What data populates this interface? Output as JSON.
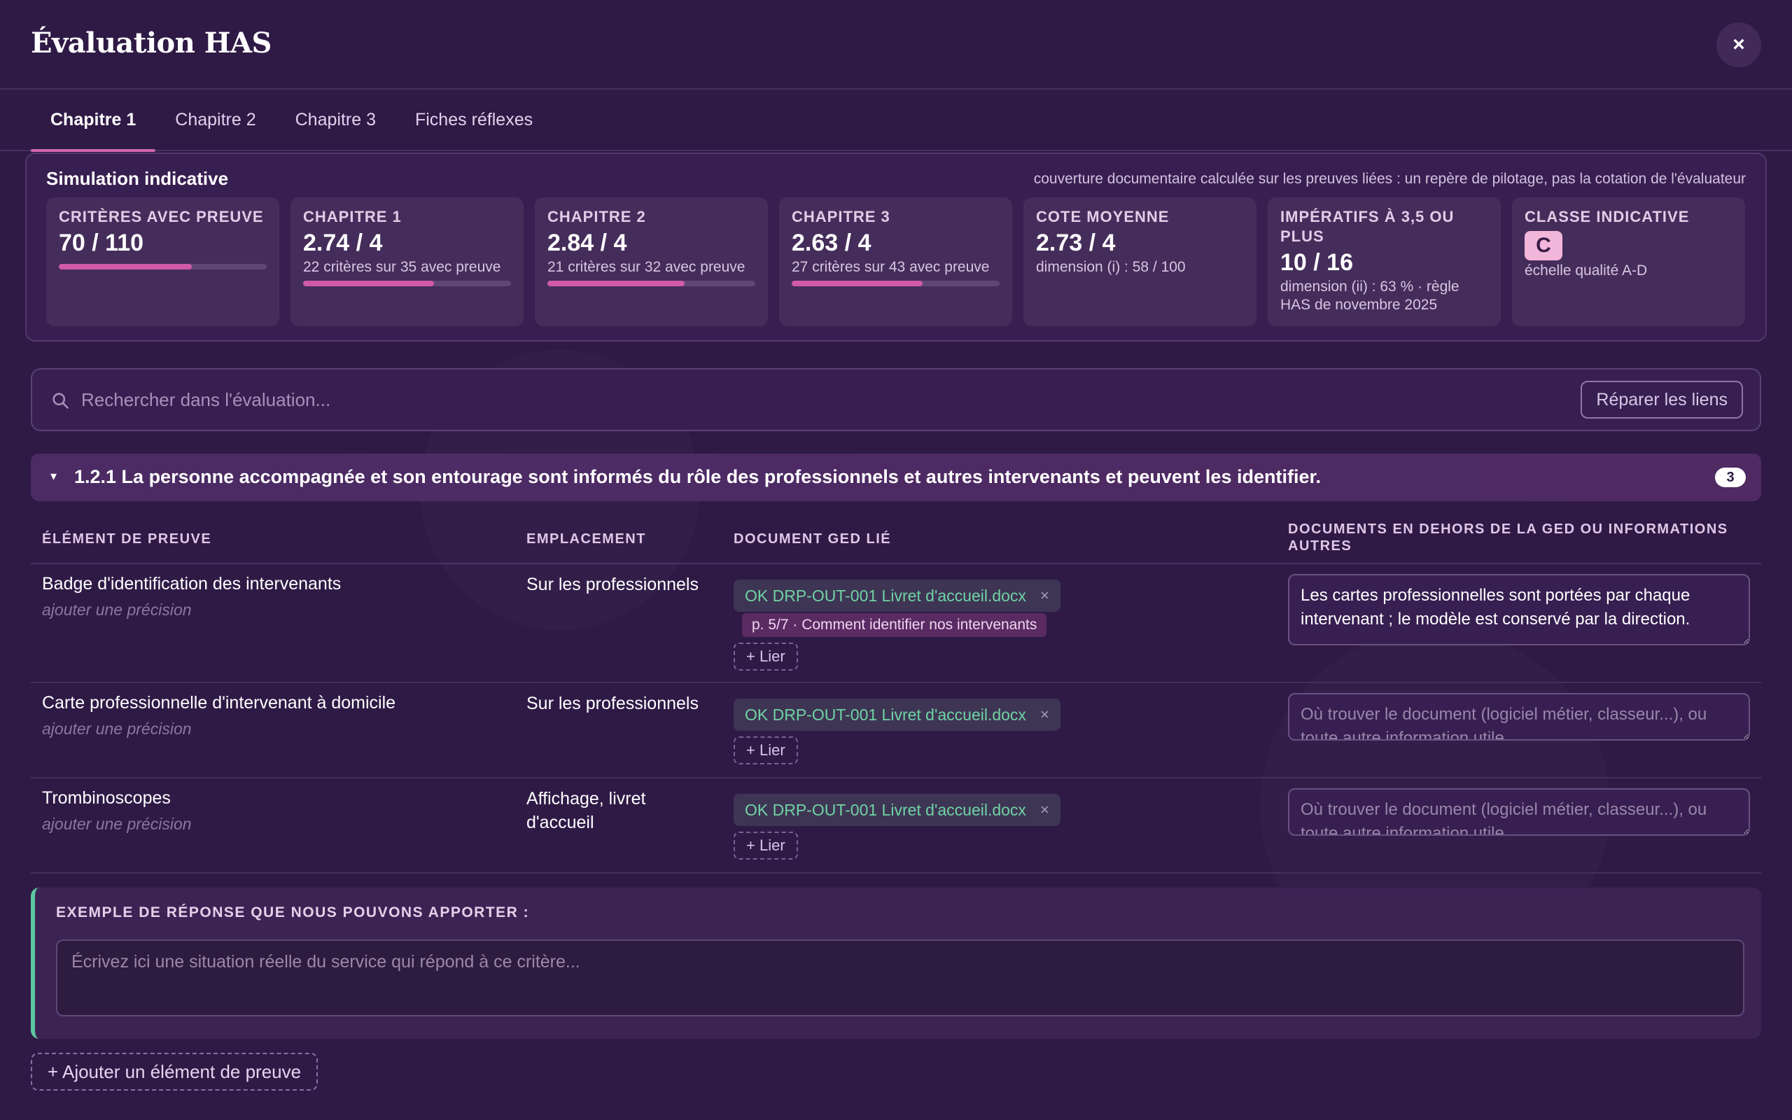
{
  "header": {
    "title": "Évaluation HAS",
    "close_glyph": "×"
  },
  "tabs": [
    {
      "label": "Chapitre 1",
      "active": true
    },
    {
      "label": "Chapitre 2",
      "active": false
    },
    {
      "label": "Chapitre 3",
      "active": false
    },
    {
      "label": "Fiches réflexes",
      "active": false
    }
  ],
  "simulation": {
    "title": "Simulation indicative",
    "note": "couverture documentaire calculée sur les preuves liées : un repère de pilotage, pas la cotation de l'évaluateur",
    "cards": [
      {
        "label": "Critères avec preuve",
        "value": "70 / 110",
        "sub": "",
        "progress": 0.64
      },
      {
        "label": "Chapitre 1",
        "value": "2.74 / 4",
        "sub": "22 critères sur 35 avec preuve",
        "progress": 0.63
      },
      {
        "label": "Chapitre 2",
        "value": "2.84 / 4",
        "sub": "21 critères sur 32 avec preuve",
        "progress": 0.66
      },
      {
        "label": "Chapitre 3",
        "value": "2.63 / 4",
        "sub": "27 critères sur 43 avec preuve",
        "progress": 0.63
      },
      {
        "label": "Cote moyenne",
        "value": "2.73 / 4",
        "sub": "dimension (i) : 58 / 100"
      },
      {
        "label": "Impératifs à 3,5 ou plus",
        "value": "10 / 16",
        "sub": "dimension (ii) : 63 % · règle HAS de novembre 2025"
      },
      {
        "label": "Classe indicative",
        "value": "C",
        "sub": "échelle qualité A-D"
      }
    ]
  },
  "search": {
    "placeholder": "Rechercher dans l'évaluation...",
    "value": "",
    "repair_label": "Réparer les liens"
  },
  "criterion": {
    "caret": "▾",
    "title": "1.2.1 La personne accompagnée et son entourage sont informés du rôle des professionnels et autres intervenants et peuvent les identifier.",
    "count": "3"
  },
  "table": {
    "headers": {
      "element": "Élément de preuve",
      "location": "Emplacement",
      "doc": "Document GED lié",
      "other": "Documents en dehors de la GED ou informations autres"
    },
    "hint": "ajouter une précision",
    "link_label": "+ Lier",
    "other_placeholder": "Où trouver le document (logiciel métier, classeur...), ou toute autre information utile",
    "rows": [
      {
        "name": "Badge d'identification des intervenants",
        "location": "Sur les professionnels",
        "doc": "OK DRP-OUT-001 Livret d'accueil.docx",
        "page": "p. 5/7 · Comment identifier nos intervenants",
        "other": "Les cartes professionnelles sont portées par chaque intervenant ; le modèle est conservé par la direction."
      },
      {
        "name": "Carte professionnelle d'intervenant à domicile",
        "location": "Sur les professionnels",
        "doc": "OK DRP-OUT-001 Livret d'accueil.docx",
        "page": "",
        "other": ""
      },
      {
        "name": "Trombinoscopes",
        "location": "Affichage, livret d'accueil",
        "doc": "OK DRP-OUT-001 Livret d'accueil.docx",
        "page": "",
        "other": ""
      }
    ]
  },
  "example": {
    "label": "Exemple de réponse que nous pouvons apporter :",
    "placeholder": "Écrivez ici une situation réelle du service qui répond à ce critère..."
  },
  "add_evidence_label": "+ Ajouter un élément de preuve",
  "colors": {
    "background": "#2f1a46",
    "accent": "#d267b0",
    "ok_text": "#6fd3a2",
    "example_border": "#5fc6a0"
  },
  "icons": {
    "search": "search-icon",
    "close": "close-icon",
    "remove": "remove-icon"
  }
}
